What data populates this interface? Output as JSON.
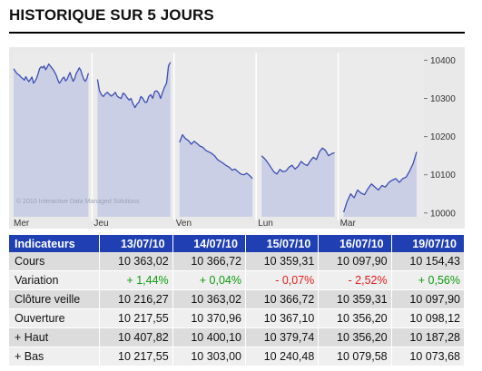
{
  "title": "HISTORIQUE SUR 5 JOURS",
  "copyright": "© 2010 Interactive Data Managed Solutions",
  "colors": {
    "header_bg": "#1f3fb3",
    "area_fill": "#c8cce6",
    "line": "#3d4fb0",
    "positive": "#0d9a0d",
    "negative": "#e41b1b"
  },
  "chart_data": {
    "type": "area",
    "title": "",
    "xlabel": "",
    "ylabel": "",
    "day_labels": [
      "Mer",
      "Jeu",
      "Ven",
      "Lun",
      "Mar"
    ],
    "yticks": [
      10000,
      10100,
      10200,
      10300,
      10400
    ],
    "ylim": [
      9990,
      10420
    ],
    "grid": "vertical day separators",
    "series": [
      {
        "segments": [
          [
            10378,
            10372,
            10366,
            10363,
            10360,
            10355,
            10352,
            10348,
            10357,
            10350,
            10344,
            10350,
            10356,
            10340,
            10345,
            10352,
            10364,
            10378,
            10383,
            10380,
            10385,
            10375,
            10382,
            10390,
            10385,
            10380,
            10375,
            10368,
            10360,
            10348,
            10340,
            10345,
            10352,
            10356,
            10346,
            10350,
            10360,
            10368,
            10355,
            10345,
            10352,
            10365,
            10372,
            10380,
            10374,
            10360,
            10350,
            10345,
            10352,
            10366
          ],
          [
            10350,
            10320,
            10310,
            10305,
            10312,
            10316,
            10311,
            10306,
            10310,
            10316,
            10306,
            10302,
            10300,
            10314,
            10310,
            10302,
            10296,
            10300,
            10286,
            10276,
            10285,
            10290,
            10305,
            10300,
            10290,
            10290,
            10305,
            10310,
            10300,
            10318,
            10320,
            10314,
            10300,
            10316,
            10330,
            10340,
            10385,
            10395
          ],
          [
            10185,
            10205,
            10195,
            10190,
            10180,
            10188,
            10182,
            10175,
            10172,
            10164,
            10160,
            10156,
            10150,
            10140,
            10135,
            10130,
            10124,
            10120,
            10112,
            10115,
            10108,
            10102,
            10100,
            10104,
            10098,
            10090
          ],
          [
            10150,
            10142,
            10132,
            10120,
            10108,
            10102,
            10114,
            10108,
            10110,
            10120,
            10125,
            10115,
            10122,
            10135,
            10128,
            10124,
            10136,
            10146,
            10140,
            10160,
            10170,
            10164,
            10150,
            10155,
            10158
          ],
          [
            10002,
            10030,
            10050,
            10040,
            10060,
            10052,
            10048,
            10064,
            10076,
            10068,
            10060,
            10072,
            10068,
            10080,
            10086,
            10090,
            10080,
            10090,
            10094,
            10110,
            10130,
            10160
          ]
        ]
      }
    ]
  },
  "table": {
    "columns": [
      "Indicateurs",
      "13/07/10",
      "14/07/10",
      "15/07/10",
      "16/07/10",
      "19/07/10"
    ],
    "rows": [
      {
        "label": "Cours",
        "cells": [
          "10 363,02",
          "10 366,72",
          "10 359,31",
          "10 097,90",
          "10 154,43"
        ],
        "tone": ""
      },
      {
        "label": "Variation",
        "cells": [
          "+ 1,44%",
          "+ 0,04%",
          "- 0,07%",
          "- 2,52%",
          "+ 0,56%"
        ],
        "tone": "variation"
      },
      {
        "label": "Clôture veille",
        "cells": [
          "10 216,27",
          "10 363,02",
          "10 366,72",
          "10 359,31",
          "10 097,90"
        ],
        "tone": ""
      },
      {
        "label": "Ouverture",
        "cells": [
          "10 217,55",
          "10 370,96",
          "10 367,10",
          "10 356,20",
          "10 098,12"
        ],
        "tone": ""
      },
      {
        "label": "+ Haut",
        "cells": [
          "10 407,82",
          "10 400,10",
          "10 379,74",
          "10 356,20",
          "10 187,28"
        ],
        "tone": ""
      },
      {
        "label": "+ Bas",
        "cells": [
          "10 217,55",
          "10 303,00",
          "10 240,48",
          "10 079,58",
          "10 073,68"
        ],
        "tone": ""
      }
    ]
  }
}
